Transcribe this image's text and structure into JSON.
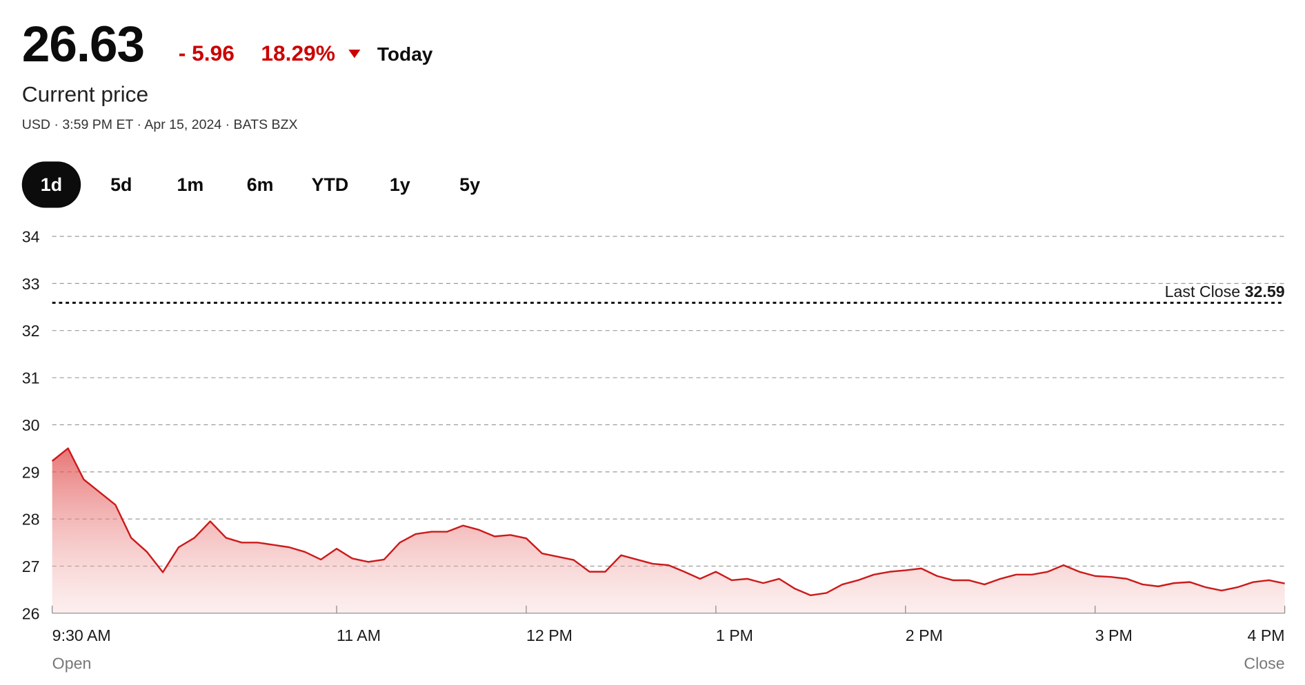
{
  "header": {
    "price": "26.63",
    "change": "- 5.96",
    "change_percent": "18.29%",
    "period": "Today",
    "subtitle": "Current price",
    "meta": "USD · 3:59 PM ET · Apr 15, 2024 · BATS BZX"
  },
  "ranges": {
    "items": [
      "1d",
      "5d",
      "1m",
      "6m",
      "YTD",
      "1y",
      "5y"
    ],
    "selected": "1d"
  },
  "chart_data": {
    "type": "area",
    "x": [
      "9:30 AM",
      "9:35 AM",
      "9:40 AM",
      "9:45 AM",
      "9:50 AM",
      "9:55 AM",
      "10:00 AM",
      "10:05 AM",
      "10:10 AM",
      "10:15 AM",
      "10:20 AM",
      "10:25 AM",
      "10:30 AM",
      "10:35 AM",
      "10:40 AM",
      "10:45 AM",
      "10:50 AM",
      "10:55 AM",
      "11:00 AM",
      "11:05 AM",
      "11:10 AM",
      "11:15 AM",
      "11:20 AM",
      "11:25 AM",
      "11:30 AM",
      "11:35 AM",
      "11:40 AM",
      "11:45 AM",
      "11:50 AM",
      "11:55 AM",
      "12:00 PM",
      "12:05 PM",
      "12:10 PM",
      "12:15 PM",
      "12:20 PM",
      "12:25 PM",
      "12:30 PM",
      "12:35 PM",
      "12:40 PM",
      "12:45 PM",
      "12:50 PM",
      "12:55 PM",
      "1:00 PM",
      "1:05 PM",
      "1:10 PM",
      "1:15 PM",
      "1:20 PM",
      "1:25 PM",
      "1:30 PM",
      "1:35 PM",
      "1:40 PM",
      "1:45 PM",
      "1:50 PM",
      "1:55 PM",
      "2:00 PM",
      "2:05 PM",
      "2:10 PM",
      "2:15 PM",
      "2:20 PM",
      "2:25 PM",
      "2:30 PM",
      "2:35 PM",
      "2:40 PM",
      "2:45 PM",
      "2:50 PM",
      "2:55 PM",
      "3:00 PM",
      "3:05 PM",
      "3:10 PM",
      "3:15 PM",
      "3:20 PM",
      "3:25 PM",
      "3:30 PM",
      "3:35 PM",
      "3:40 PM",
      "3:45 PM",
      "3:50 PM",
      "3:55 PM",
      "4:00 PM"
    ],
    "series": [
      {
        "color": "#cc1a1a",
        "values": [
          29.23,
          29.5,
          28.84,
          28.57,
          28.3,
          27.6,
          27.3,
          26.87,
          27.4,
          27.6,
          27.95,
          27.6,
          27.5,
          27.5,
          27.45,
          27.4,
          27.3,
          27.14,
          27.37,
          27.16,
          27.09,
          27.14,
          27.5,
          27.68,
          27.73,
          27.73,
          27.86,
          27.77,
          27.63,
          27.66,
          27.59,
          27.27,
          27.2,
          27.13,
          26.88,
          26.88,
          27.23,
          27.14,
          27.05,
          27.02,
          26.88,
          26.73,
          26.88,
          26.7,
          26.73,
          26.64,
          26.73,
          26.52,
          26.38,
          26.43,
          26.61,
          26.7,
          26.82,
          26.88,
          26.91,
          26.95,
          26.79,
          26.7,
          26.7,
          26.61,
          26.73,
          26.82,
          26.82,
          26.88,
          27.02,
          26.88,
          26.79,
          26.77,
          26.73,
          26.61,
          26.57,
          26.64,
          26.66,
          26.55,
          26.48,
          26.55,
          26.66,
          26.7,
          26.63
        ]
      }
    ],
    "xlim": [
      "9:30 AM",
      "4 PM"
    ],
    "xticks": [
      "9:30 AM",
      "11 AM",
      "12 PM",
      "1 PM",
      "2 PM",
      "3 PM",
      "4 PM"
    ],
    "open_label": "Open",
    "close_label": "Close",
    "ylim": [
      26,
      34
    ],
    "yticks": [
      26,
      27,
      28,
      29,
      30,
      31,
      32,
      33,
      34
    ],
    "grid": true,
    "reference_line": {
      "label": "Last Close",
      "value": 32.59
    }
  }
}
